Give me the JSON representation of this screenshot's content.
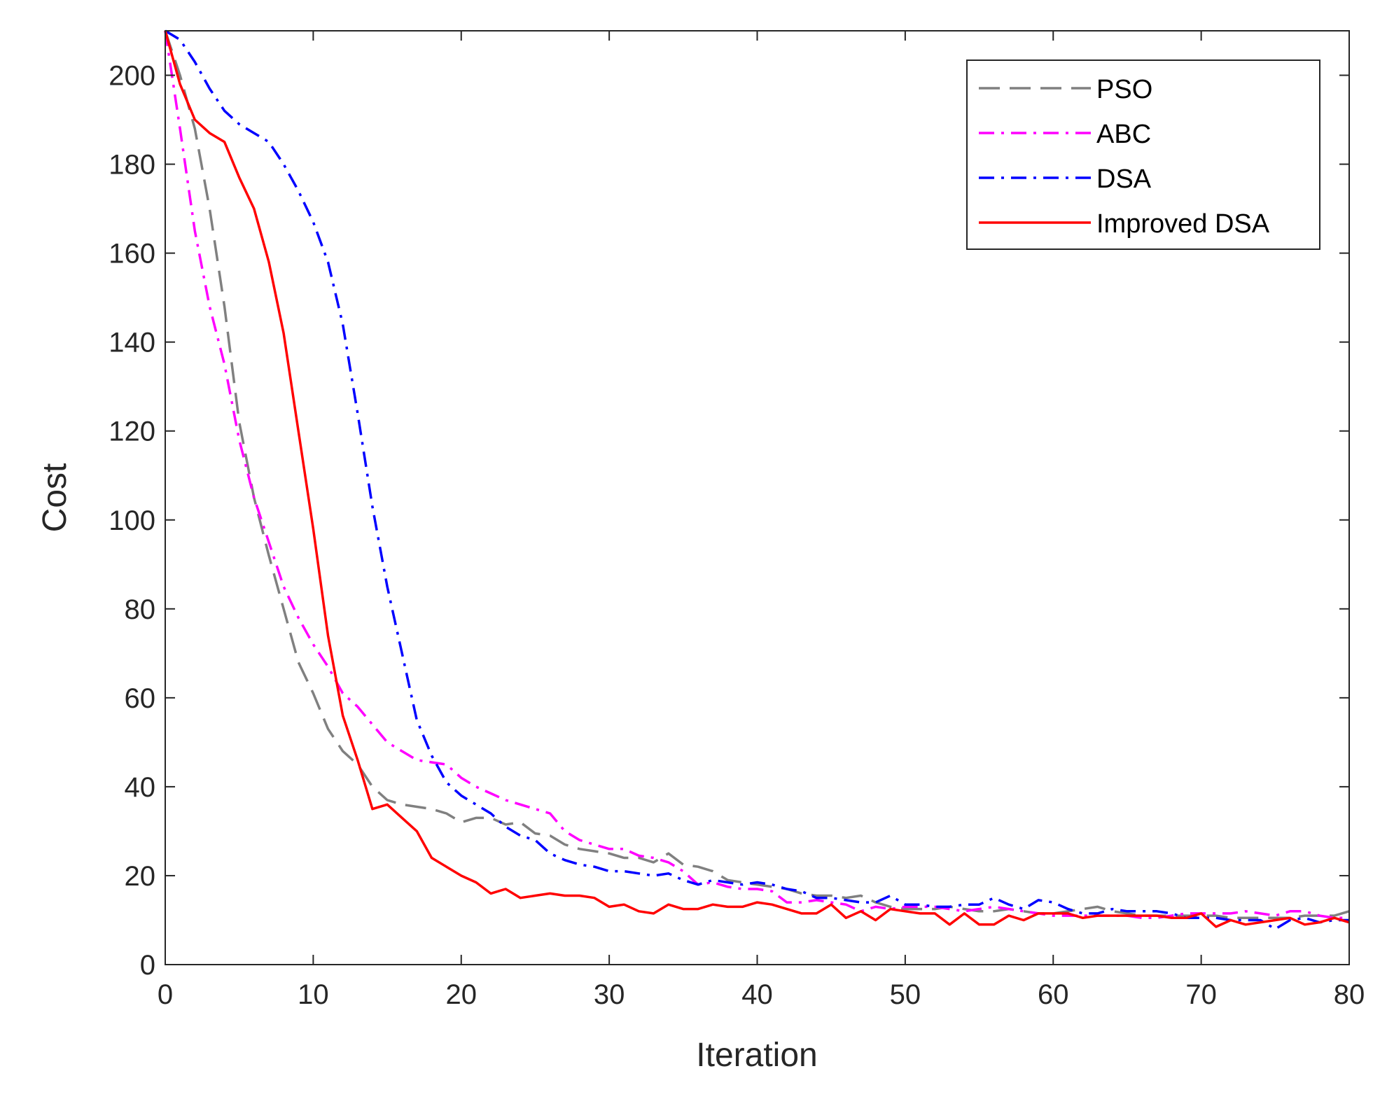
{
  "chart_data": {
    "type": "line",
    "title": "",
    "xlabel": "Iteration",
    "ylabel": "Cost",
    "xlim": [
      0,
      80
    ],
    "ylim": [
      0,
      210
    ],
    "xticks": [
      0,
      10,
      20,
      30,
      40,
      50,
      60,
      70,
      80
    ],
    "yticks": [
      0,
      20,
      40,
      60,
      80,
      100,
      120,
      140,
      160,
      180,
      200
    ],
    "grid": false,
    "legend_position": "top-right",
    "series": [
      {
        "name": "PSO",
        "color": "#808080",
        "style": "dashed",
        "x": [
          0,
          1,
          2,
          3,
          4,
          5,
          6,
          7,
          8,
          9,
          10,
          11,
          12,
          13,
          14,
          15,
          16,
          17,
          18,
          19,
          20,
          21,
          22,
          23,
          24,
          25,
          26,
          27,
          28,
          29,
          30,
          31,
          32,
          33,
          34,
          35,
          36,
          37,
          38,
          39,
          40,
          41,
          42,
          43,
          44,
          45,
          46,
          47,
          48,
          49,
          50,
          51,
          52,
          53,
          54,
          55,
          56,
          57,
          58,
          59,
          60,
          61,
          62,
          63,
          64,
          65,
          66,
          67,
          68,
          69,
          70,
          71,
          72,
          73,
          74,
          75,
          76,
          77,
          78,
          79,
          80
        ],
        "y": [
          210,
          200,
          188,
          170,
          148,
          122,
          105,
          92,
          80,
          68,
          61,
          53,
          48,
          45,
          40,
          37,
          36,
          35.5,
          35,
          34,
          32,
          33,
          33,
          31.5,
          32,
          29.5,
          29,
          27,
          26,
          25.5,
          25,
          24,
          24,
          23,
          25,
          22.5,
          22,
          21,
          19,
          18.5,
          18,
          17.5,
          17,
          16,
          15.5,
          15.5,
          15,
          15.5,
          14,
          13,
          12.5,
          12.5,
          12.5,
          13,
          12.5,
          12,
          12,
          12.5,
          12,
          11.5,
          11.5,
          12,
          12.5,
          13,
          12,
          11.5,
          11,
          11,
          11,
          11,
          11,
          11,
          10.5,
          10.5,
          10.5,
          10.5,
          10.5,
          11,
          11,
          11,
          12
        ]
      },
      {
        "name": "ABC",
        "color": "#ff00ff",
        "style": "dashdot",
        "x": [
          0,
          1,
          2,
          3,
          4,
          5,
          6,
          7,
          8,
          9,
          10,
          11,
          12,
          13,
          14,
          15,
          16,
          17,
          18,
          19,
          20,
          21,
          22,
          23,
          24,
          25,
          26,
          27,
          28,
          29,
          30,
          31,
          32,
          33,
          34,
          35,
          36,
          37,
          38,
          39,
          40,
          41,
          42,
          43,
          44,
          45,
          46,
          47,
          48,
          49,
          50,
          51,
          52,
          53,
          54,
          55,
          56,
          57,
          58,
          59,
          60,
          61,
          62,
          63,
          64,
          65,
          66,
          67,
          68,
          69,
          70,
          71,
          72,
          73,
          74,
          75,
          76,
          77,
          78,
          79,
          80
        ],
        "y": [
          210,
          188,
          165,
          148,
          135,
          118,
          105,
          95,
          85,
          78,
          72,
          67,
          61,
          58,
          54,
          50,
          48,
          46,
          45.5,
          45,
          42,
          40,
          38.5,
          37,
          36,
          35,
          34,
          30,
          28,
          27,
          26,
          26,
          24.5,
          24,
          23,
          21,
          18,
          18.5,
          17.5,
          17,
          17,
          16.5,
          14,
          14,
          14.5,
          14,
          13.5,
          12,
          13,
          12.5,
          13,
          13,
          13,
          12.5,
          12,
          12.5,
          13,
          12.5,
          12,
          11.5,
          11,
          11,
          11,
          11,
          11,
          11,
          10.5,
          10.5,
          11,
          11.5,
          11.5,
          11.5,
          11.5,
          12,
          11.5,
          11,
          12,
          12,
          11,
          10.5,
          10.5
        ]
      },
      {
        "name": "DSA",
        "color": "#0000ff",
        "style": "dashdot",
        "x": [
          0,
          1,
          2,
          3,
          4,
          5,
          6,
          7,
          8,
          9,
          10,
          11,
          12,
          13,
          14,
          15,
          16,
          17,
          18,
          19,
          20,
          21,
          22,
          23,
          24,
          25,
          26,
          27,
          28,
          29,
          30,
          31,
          32,
          33,
          34,
          35,
          36,
          37,
          38,
          39,
          40,
          41,
          42,
          43,
          44,
          45,
          46,
          47,
          48,
          49,
          50,
          51,
          52,
          53,
          54,
          55,
          56,
          57,
          58,
          59,
          60,
          61,
          62,
          63,
          64,
          65,
          66,
          67,
          68,
          69,
          70,
          71,
          72,
          73,
          74,
          75,
          76,
          77,
          78,
          79,
          80
        ],
        "y": [
          210,
          208,
          203,
          197,
          192,
          189,
          187,
          185,
          180,
          174,
          167,
          158,
          144,
          124,
          103,
          85,
          70,
          55,
          47,
          41,
          38,
          36,
          34,
          31,
          29,
          28,
          25,
          23.5,
          22.5,
          22,
          21,
          21,
          20.5,
          20,
          20.5,
          19,
          18,
          19,
          18.5,
          18,
          18.5,
          18,
          17,
          16.5,
          15,
          15,
          14.5,
          14,
          14,
          15.5,
          13.5,
          13.5,
          13,
          13,
          13.5,
          13.5,
          15,
          13.5,
          12.5,
          14.5,
          14,
          12.5,
          11.5,
          11.5,
          12.5,
          12,
          12,
          12,
          11.5,
          10.5,
          10.5,
          10.5,
          10,
          10,
          10,
          8,
          10,
          10.5,
          9.5,
          10,
          10
        ]
      },
      {
        "name": "Improved DSA",
        "color": "#ff0000",
        "style": "solid",
        "x": [
          0,
          1,
          2,
          3,
          4,
          5,
          6,
          7,
          8,
          9,
          10,
          11,
          12,
          13,
          14,
          15,
          16,
          17,
          18,
          19,
          20,
          21,
          22,
          23,
          24,
          25,
          26,
          27,
          28,
          29,
          30,
          31,
          32,
          33,
          34,
          35,
          36,
          37,
          38,
          39,
          40,
          41,
          42,
          43,
          44,
          45,
          46,
          47,
          48,
          49,
          50,
          51,
          52,
          53,
          54,
          55,
          56,
          57,
          58,
          59,
          60,
          61,
          62,
          63,
          64,
          65,
          66,
          67,
          68,
          69,
          70,
          71,
          72,
          73,
          74,
          75,
          76,
          77,
          78,
          79,
          80
        ],
        "y": [
          210,
          198,
          190,
          187,
          185,
          177,
          170,
          158,
          142,
          120,
          98,
          74,
          56,
          46,
          35,
          36,
          33,
          30,
          24,
          22,
          20,
          18.5,
          16,
          17,
          15,
          15.5,
          16,
          15.5,
          15.5,
          15,
          13,
          13.5,
          12,
          11.5,
          13.5,
          12.5,
          12.5,
          13.5,
          13,
          13,
          14,
          13.5,
          12.5,
          11.5,
          11.5,
          13.5,
          10.5,
          12,
          10,
          12.5,
          12,
          11.5,
          11.5,
          9,
          11.5,
          9,
          9,
          11,
          10,
          11.5,
          11.5,
          11.5,
          10.5,
          11,
          11,
          11,
          11,
          11,
          10.5,
          10.5,
          11.5,
          8.5,
          10,
          9,
          9.5,
          10,
          10.5,
          9,
          9.5,
          10.5,
          9.5
        ]
      }
    ]
  }
}
